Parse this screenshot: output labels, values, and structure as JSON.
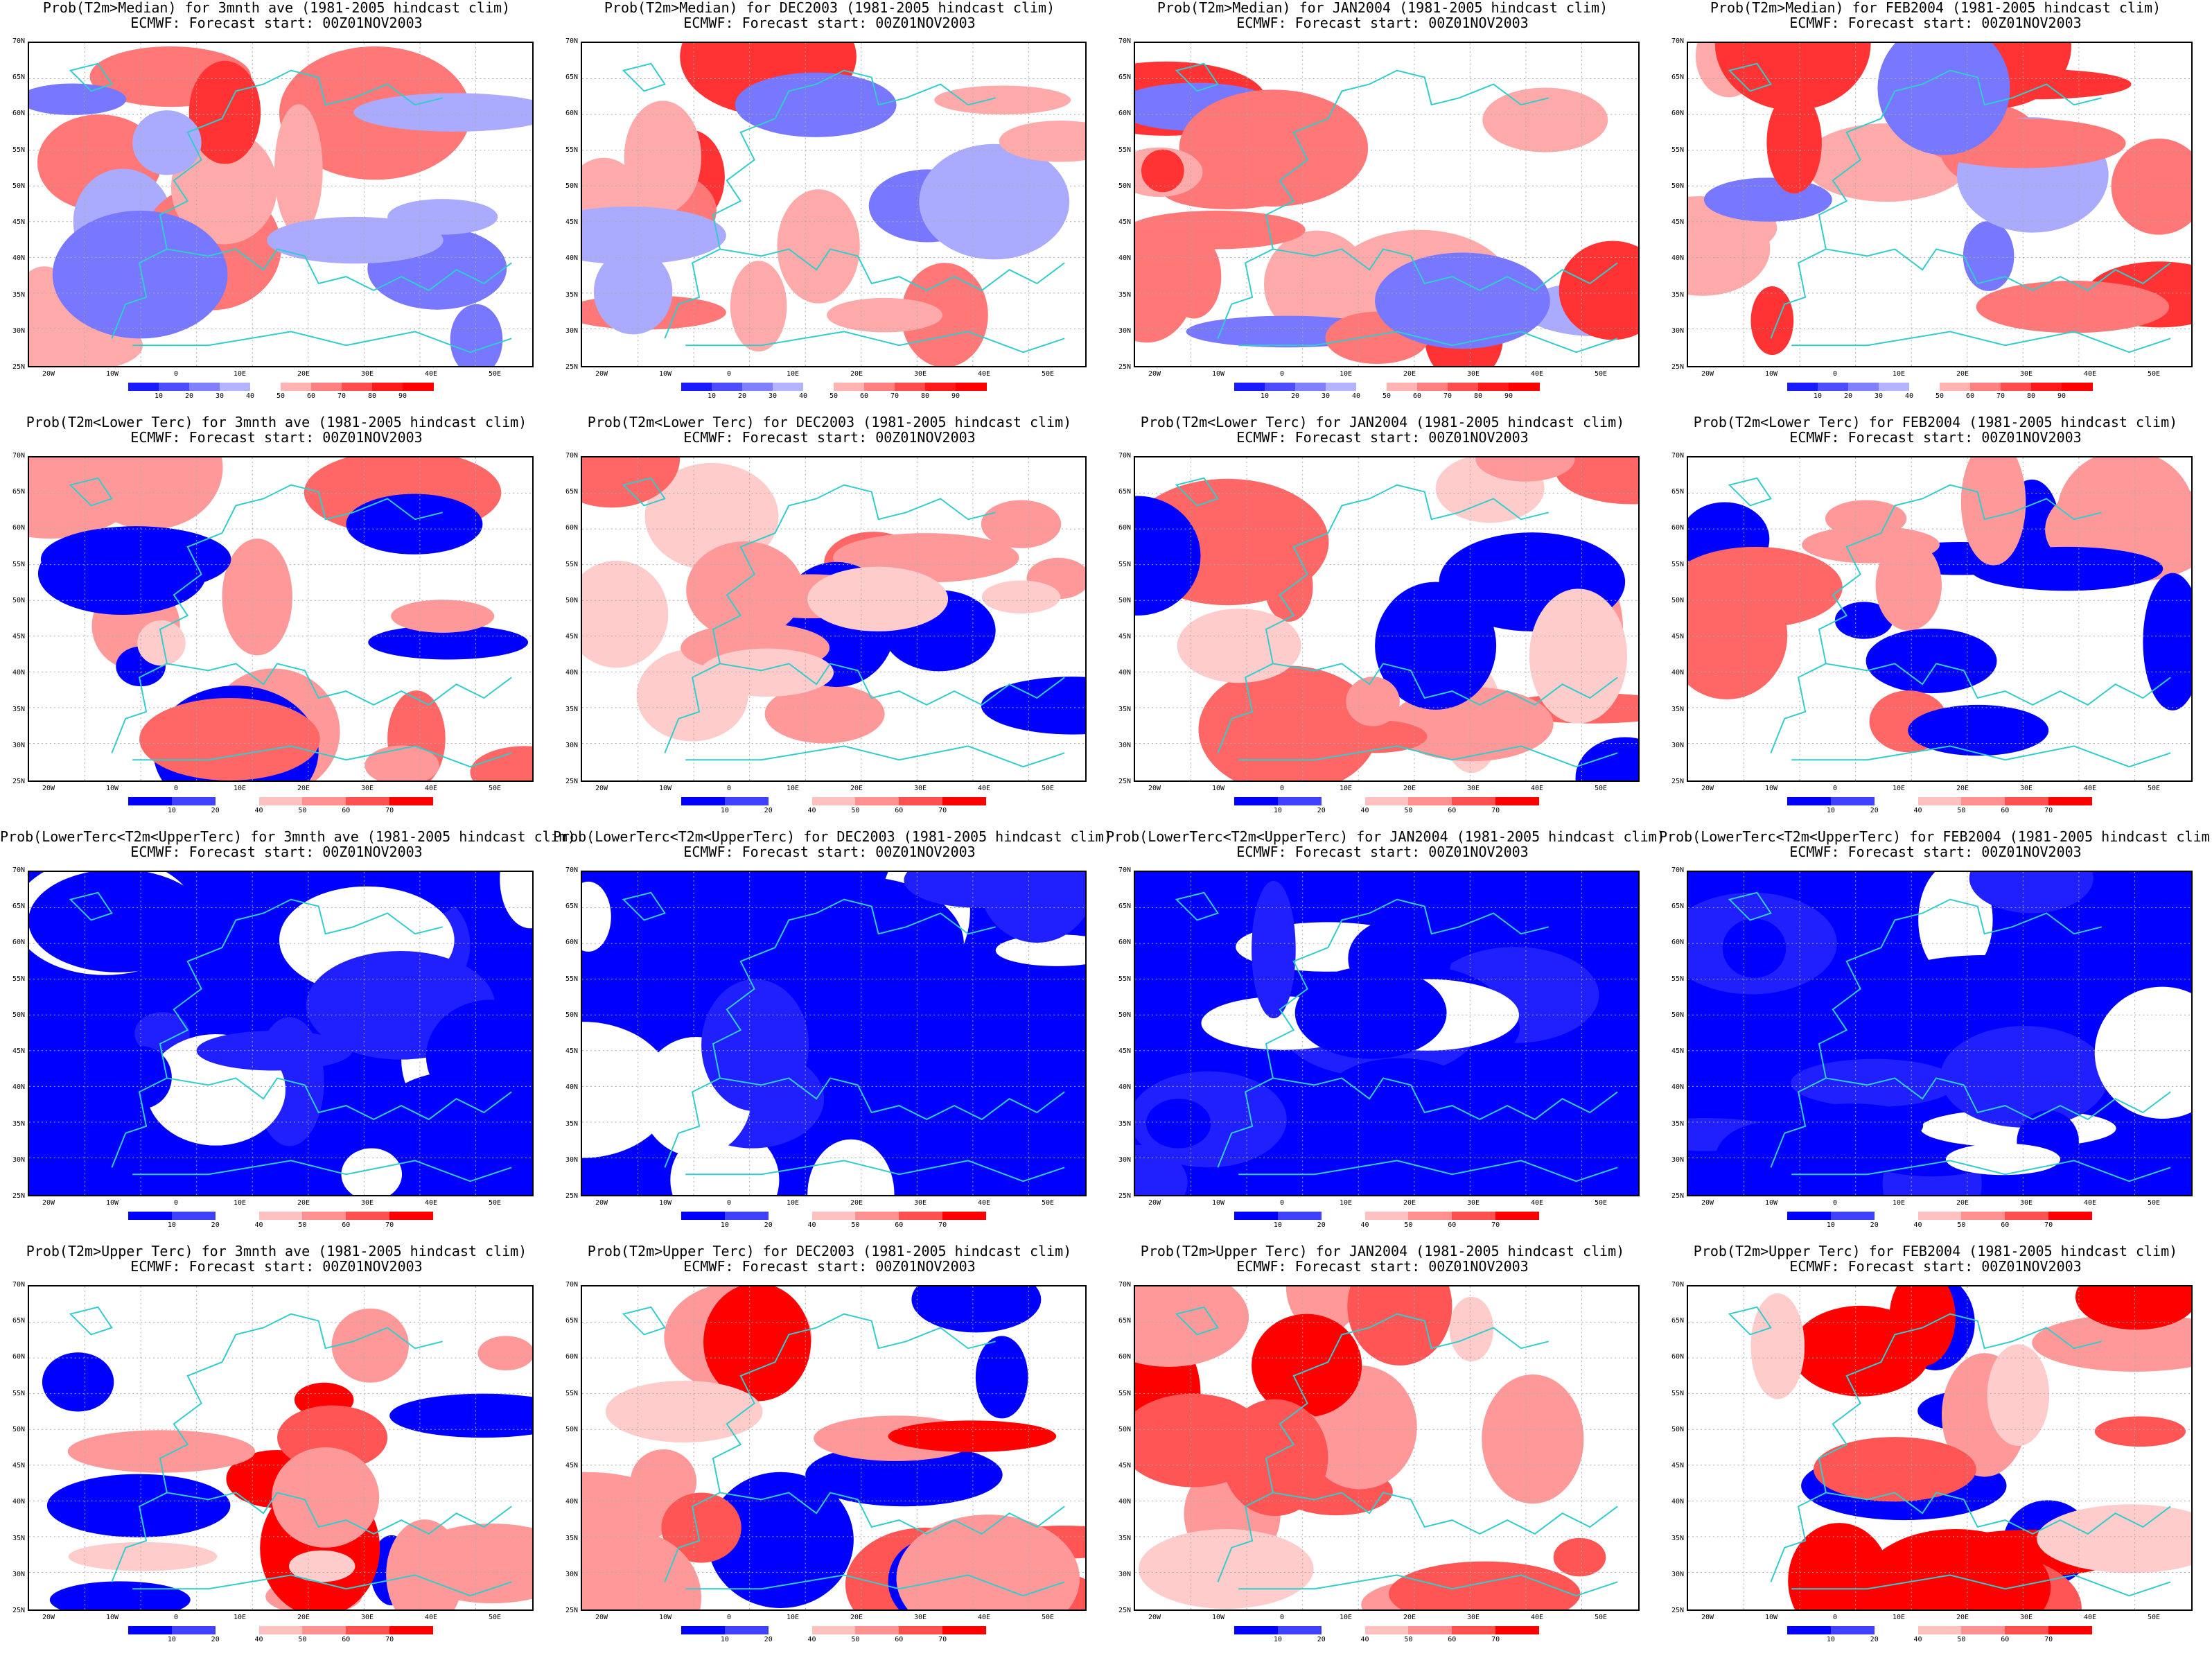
{
  "panels": [
    {
      "line1": "Prob(T2m>Median) for 3mnth ave (1981-2005 hindcast clim)",
      "line2": "ECMWF: Forecast start: 00Z01NOV2003",
      "kind": "median"
    },
    {
      "line1": "Prob(T2m>Median) for DEC2003 (1981-2005 hindcast clim)",
      "line2": "ECMWF: Forecast start: 00Z01NOV2003",
      "kind": "median"
    },
    {
      "line1": "Prob(T2m>Median) for JAN2004 (1981-2005 hindcast clim)",
      "line2": "ECMWF: Forecast start: 00Z01NOV2003",
      "kind": "median"
    },
    {
      "line1": "Prob(T2m>Median) for FEB2004 (1981-2005 hindcast clim)",
      "line2": "ECMWF: Forecast start: 00Z01NOV2003",
      "kind": "median"
    },
    {
      "line1": "Prob(T2m<Lower Terc) for 3mnth ave (1981-2005 hindcast clim)",
      "line2": "ECMWF: Forecast start: 00Z01NOV2003",
      "kind": "lower"
    },
    {
      "line1": "Prob(T2m<Lower Terc) for DEC2003 (1981-2005 hindcast clim)",
      "line2": "ECMWF: Forecast start: 00Z01NOV2003",
      "kind": "lower"
    },
    {
      "line1": "Prob(T2m<Lower Terc) for JAN2004 (1981-2005 hindcast clim)",
      "line2": "ECMWF: Forecast start: 00Z01NOV2003",
      "kind": "lower"
    },
    {
      "line1": "Prob(T2m<Lower Terc) for FEB2004 (1981-2005 hindcast clim)",
      "line2": "ECMWF: Forecast start: 00Z01NOV2003",
      "kind": "lower"
    },
    {
      "line1": "Prob(LowerTerc<T2m<UpperTerc) for 3mnth ave (1981-2005 hindcast clim)",
      "line2": "ECMWF: Forecast start: 00Z01NOV2003",
      "kind": "middle"
    },
    {
      "line1": "Prob(LowerTerc<T2m<UpperTerc) for DEC2003 (1981-2005 hindcast clim)",
      "line2": "ECMWF: Forecast start: 00Z01NOV2003",
      "kind": "middle"
    },
    {
      "line1": "Prob(LowerTerc<T2m<UpperTerc) for JAN2004 (1981-2005 hindcast clim)",
      "line2": "ECMWF: Forecast start: 00Z01NOV2003",
      "kind": "middle"
    },
    {
      "line1": "Prob(LowerTerc<T2m<UpperTerc) for FEB2004 (1981-2005 hindcast clim)",
      "line2": "ECMWF: Forecast start: 00Z01NOV2003",
      "kind": "middle"
    },
    {
      "line1": "Prob(T2m>Upper Terc) for 3mnth ave (1981-2005 hindcast clim)",
      "line2": "ECMWF: Forecast start: 00Z01NOV2003",
      "kind": "upper"
    },
    {
      "line1": "Prob(T2m>Upper Terc) for DEC2003 (1981-2005 hindcast clim)",
      "line2": "ECMWF: Forecast start: 00Z01NOV2003",
      "kind": "upper"
    },
    {
      "line1": "Prob(T2m>Upper Terc) for JAN2004 (1981-2005 hindcast clim)",
      "line2": "ECMWF: Forecast start: 00Z01NOV2003",
      "kind": "upper"
    },
    {
      "line1": "Prob(T2m>Upper Terc) for FEB2004 (1981-2005 hindcast clim)",
      "line2": "ECMWF: Forecast start: 00Z01NOV2003",
      "kind": "upper"
    }
  ],
  "lat_labels": [
    "70N",
    "65N",
    "60N",
    "55N",
    "50N",
    "45N",
    "40N",
    "35N",
    "30N",
    "25N"
  ],
  "lon_labels": [
    "20W",
    "10W",
    "0",
    "10E",
    "20E",
    "30E",
    "40E",
    "50E"
  ],
  "colorbars": {
    "median": {
      "ticks": [
        "10",
        "20",
        "30",
        "40",
        "50",
        "60",
        "70",
        "80",
        "90"
      ],
      "colors": [
        "#1a1aff",
        "#4d4dff",
        "#8080ff",
        "#b3b3ff",
        "#ffffff",
        "#ffb3b3",
        "#ff8080",
        "#ff4d4d",
        "#ff1a1a",
        "#ff0000"
      ]
    },
    "tercile": {
      "ticks": [
        "10",
        "20",
        "40",
        "50",
        "60",
        "70"
      ],
      "colors": [
        "#0000ff",
        "#4040ff",
        "#ffffff",
        "#ffc0c0",
        "#ff9090",
        "#ff5050",
        "#ff0000"
      ]
    }
  },
  "colors": {
    "coast": "#33cccc",
    "frame": "#000000"
  }
}
